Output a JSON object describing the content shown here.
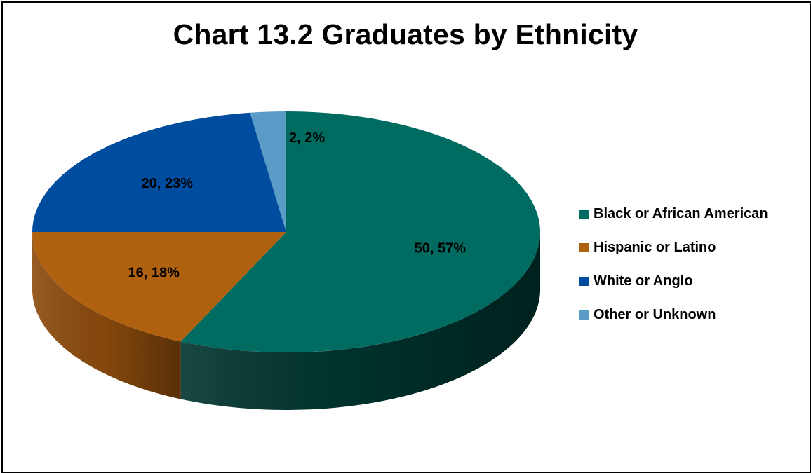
{
  "chart_data": {
    "type": "pie",
    "style": "3d",
    "title": "Chart 13.2 Graduates by Ethnicity",
    "legend_position": "right",
    "slices": [
      {
        "label": "Black or African American",
        "value": 50,
        "percent": "57%",
        "data_label": "50, 57%",
        "color": "#006B60",
        "side_color": "#00332D"
      },
      {
        "label": "Hispanic or Latino",
        "value": 16,
        "percent": "18%",
        "data_label": "16, 18%",
        "color": "#B0610F",
        "side_color": "#8A4A0C"
      },
      {
        "label": "White or Anglo",
        "value": 20,
        "percent": "23%",
        "data_label": "20, 23%",
        "color": "#004C9E",
        "side_color": "#003A78"
      },
      {
        "label": "Other or Unknown",
        "value": 2,
        "percent": "2%",
        "data_label": "2, 2%",
        "color": "#5B9BC8",
        "side_color": "#3F7AA5"
      }
    ]
  }
}
